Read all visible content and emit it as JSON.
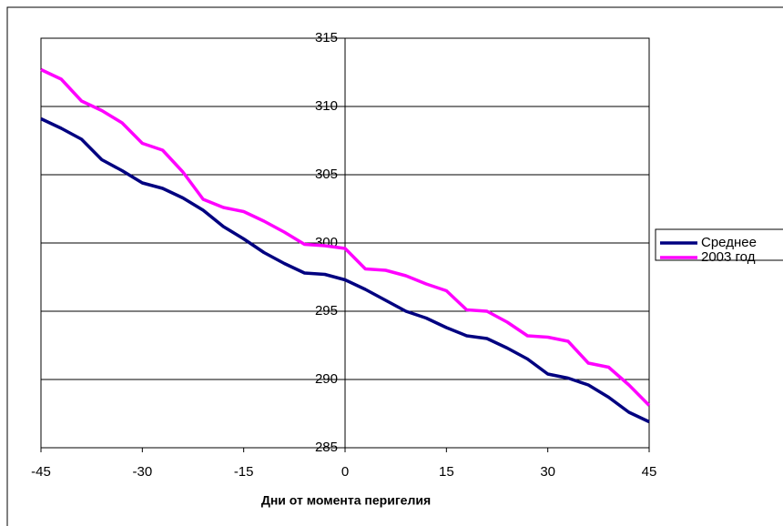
{
  "chart_data": {
    "type": "line",
    "x_label": "Дни от момента перигелия",
    "x": [
      -45,
      -42,
      -39,
      -36,
      -33,
      -30,
      -27,
      -24,
      -21,
      -18,
      -15,
      -12,
      -9,
      -6,
      -3,
      0,
      3,
      6,
      9,
      12,
      15,
      18,
      21,
      24,
      27,
      30,
      33,
      36,
      39,
      42,
      45
    ],
    "series": [
      {
        "name": "Среднее",
        "color": "#000080",
        "values": [
          309.1,
          308.4,
          307.6,
          306.1,
          305.3,
          304.4,
          304.0,
          303.3,
          302.4,
          301.2,
          300.3,
          299.3,
          298.5,
          297.8,
          297.7,
          297.3,
          296.6,
          295.8,
          295.0,
          294.5,
          293.8,
          293.2,
          293.0,
          292.3,
          291.5,
          290.4,
          290.1,
          289.6,
          288.7,
          287.6,
          286.9
        ]
      },
      {
        "name": "2003 год",
        "color": "#ff00ff",
        "values": [
          312.7,
          312.0,
          310.4,
          309.7,
          308.8,
          307.3,
          306.8,
          305.2,
          303.2,
          302.6,
          302.3,
          301.6,
          300.8,
          299.9,
          299.8,
          299.6,
          298.1,
          298.0,
          297.6,
          297.0,
          296.5,
          295.1,
          295.0,
          294.2,
          293.2,
          293.1,
          292.8,
          291.2,
          290.9,
          289.6,
          288.1
        ]
      }
    ],
    "xlim": [
      -45,
      45
    ],
    "xticks": [
      -45,
      -30,
      -15,
      0,
      15,
      30,
      45
    ],
    "ylim": [
      285,
      315
    ],
    "yticks": [
      285,
      290,
      295,
      300,
      305,
      310,
      315
    ],
    "grid": true,
    "legend": "right"
  }
}
